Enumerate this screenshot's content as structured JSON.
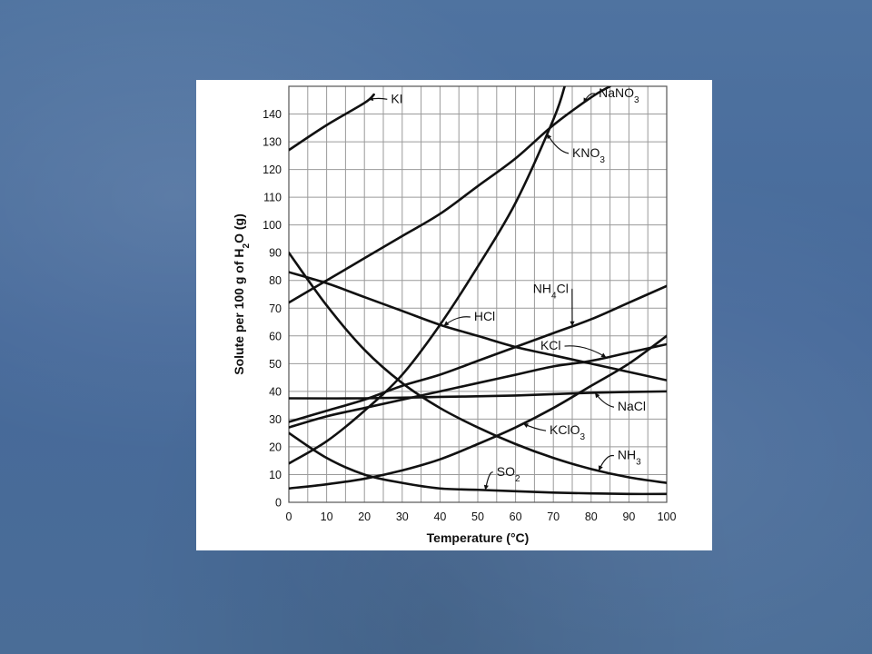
{
  "chart_data": {
    "type": "line",
    "title": "",
    "xlabel": "Temperature (°C)",
    "ylabel": "Solute per 100 g of H2O (g)",
    "ylabel_parts": [
      "Solute per 100 g of H",
      "2",
      "O (g)"
    ],
    "xlim": [
      0,
      100
    ],
    "ylim": [
      0,
      150
    ],
    "x_ticks": [
      0,
      10,
      20,
      30,
      40,
      50,
      60,
      70,
      80,
      90,
      100
    ],
    "y_ticks": [
      0,
      10,
      20,
      30,
      40,
      50,
      60,
      70,
      80,
      90,
      100,
      110,
      120,
      130,
      140
    ],
    "grid": true,
    "series": [
      {
        "name": "KI",
        "label_parts": [
          "KI"
        ],
        "x": [
          0,
          10,
          20,
          22.5
        ],
        "y": [
          127,
          136,
          144,
          147
        ]
      },
      {
        "name": "NaNO3",
        "label_parts": [
          "NaNO",
          "3"
        ],
        "x": [
          0,
          10,
          20,
          30,
          40,
          50,
          60,
          70,
          80,
          85
        ],
        "y": [
          72,
          80,
          88,
          96,
          104,
          114,
          124,
          136,
          146,
          150
        ]
      },
      {
        "name": "KNO3",
        "label_parts": [
          "KNO",
          "3"
        ],
        "x": [
          0,
          10,
          20,
          30,
          40,
          50,
          60,
          70,
          73
        ],
        "y": [
          14,
          22,
          33,
          46,
          64,
          85,
          108,
          138,
          150
        ]
      },
      {
        "name": "NH4Cl",
        "label_parts": [
          "NH",
          "4",
          "Cl"
        ],
        "x": [
          0,
          10,
          20,
          30,
          40,
          50,
          60,
          70,
          80,
          90,
          100
        ],
        "y": [
          29,
          33,
          37,
          42,
          46,
          51,
          56,
          61,
          66,
          72,
          78
        ]
      },
      {
        "name": "HCl",
        "label_parts": [
          "HCl"
        ],
        "x": [
          0,
          10,
          20,
          30,
          40,
          50,
          60,
          70,
          80,
          90,
          100
        ],
        "y": [
          83,
          79,
          74,
          69,
          64,
          60,
          56,
          53,
          50,
          47,
          44
        ]
      },
      {
        "name": "KCl",
        "label_parts": [
          "KCl"
        ],
        "x": [
          0,
          10,
          20,
          30,
          40,
          50,
          60,
          70,
          80,
          90,
          100
        ],
        "y": [
          27,
          31,
          34,
          37,
          40,
          43,
          46,
          49,
          51,
          54,
          57
        ]
      },
      {
        "name": "NaCl",
        "label_parts": [
          "NaCl"
        ],
        "x": [
          0,
          20,
          40,
          60,
          80,
          100
        ],
        "y": [
          37.5,
          37.5,
          38,
          38.5,
          39.5,
          40
        ]
      },
      {
        "name": "KClO3",
        "label_parts": [
          "KClO",
          "3"
        ],
        "x": [
          0,
          10,
          20,
          30,
          40,
          50,
          60,
          70,
          80,
          90,
          100
        ],
        "y": [
          5,
          6.5,
          8.5,
          11.5,
          15.5,
          21,
          27,
          34,
          42,
          50,
          60
        ]
      },
      {
        "name": "NH3",
        "label_parts": [
          "NH",
          "3"
        ],
        "x": [
          0,
          10,
          20,
          30,
          40,
          50,
          60,
          70,
          80,
          90,
          100
        ],
        "y": [
          90,
          71,
          55,
          43,
          34,
          27,
          21,
          16,
          12,
          9,
          7
        ]
      },
      {
        "name": "SO2",
        "label_parts": [
          "SO",
          "2"
        ],
        "x": [
          0,
          10,
          20,
          30,
          40,
          50,
          60,
          70,
          80,
          90,
          100
        ],
        "y": [
          25,
          16,
          10,
          7,
          5,
          4.5,
          4,
          3.5,
          3.2,
          3,
          3
        ]
      }
    ]
  }
}
